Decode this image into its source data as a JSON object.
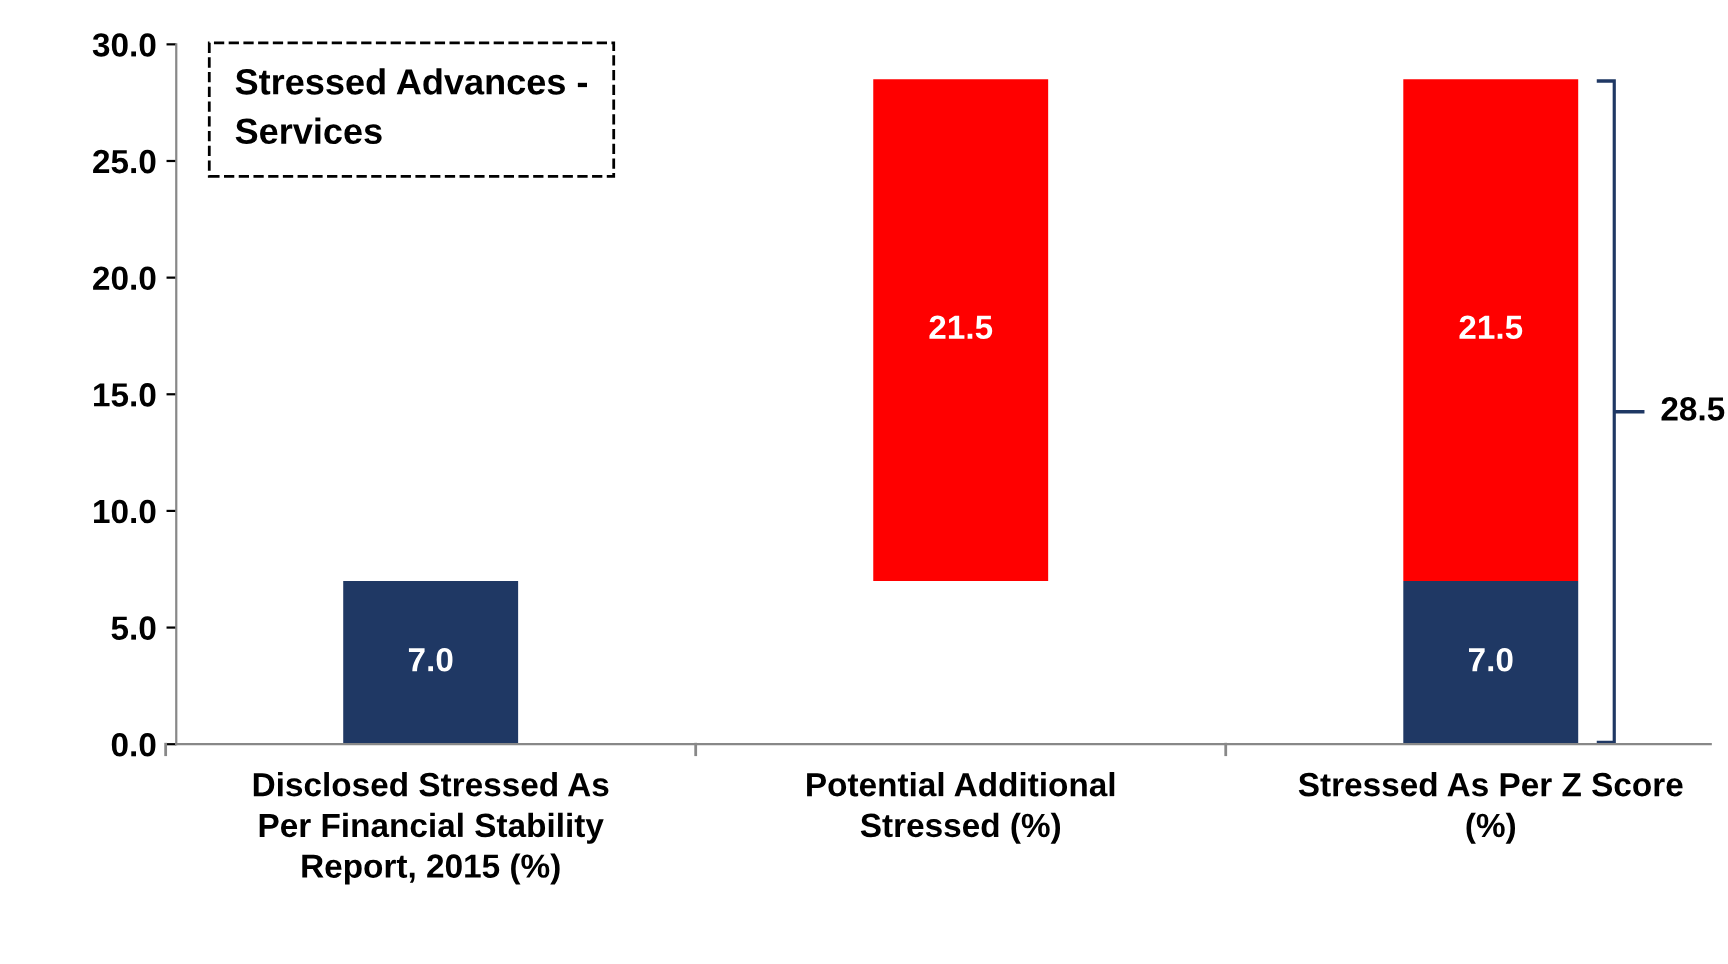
{
  "chart_data": {
    "type": "bar",
    "categories": [
      "Disclosed Stressed As Per Financial Stability Report, 2015 (%)",
      "Potential Additional Stressed (%)",
      "Stressed As Per Z Score (%)"
    ],
    "series": [
      {
        "color": "#1f3864",
        "values": [
          7.0,
          null,
          7.0
        ],
        "base": [
          0,
          null,
          0
        ],
        "value_labels": [
          "7.0",
          null,
          "7.0"
        ]
      },
      {
        "color": "#ff0000",
        "values": [
          null,
          21.5,
          21.5
        ],
        "base": [
          null,
          7.0,
          7.0
        ],
        "value_labels": [
          null,
          "21.5",
          "21.5"
        ]
      }
    ],
    "ylim": [
      0,
      30
    ],
    "yticks": [
      {
        "value": 0,
        "label": "0.0"
      },
      {
        "value": 5,
        "label": "5.0"
      },
      {
        "value": 10,
        "label": "10.0"
      },
      {
        "value": 15,
        "label": "15.0"
      },
      {
        "value": 20,
        "label": "20.0"
      },
      {
        "value": 25,
        "label": "25.0"
      },
      {
        "value": 30,
        "label": "30.0"
      }
    ],
    "grid": false,
    "annotations": [
      "Stressed Advances - Services",
      "28.5"
    ]
  }
}
